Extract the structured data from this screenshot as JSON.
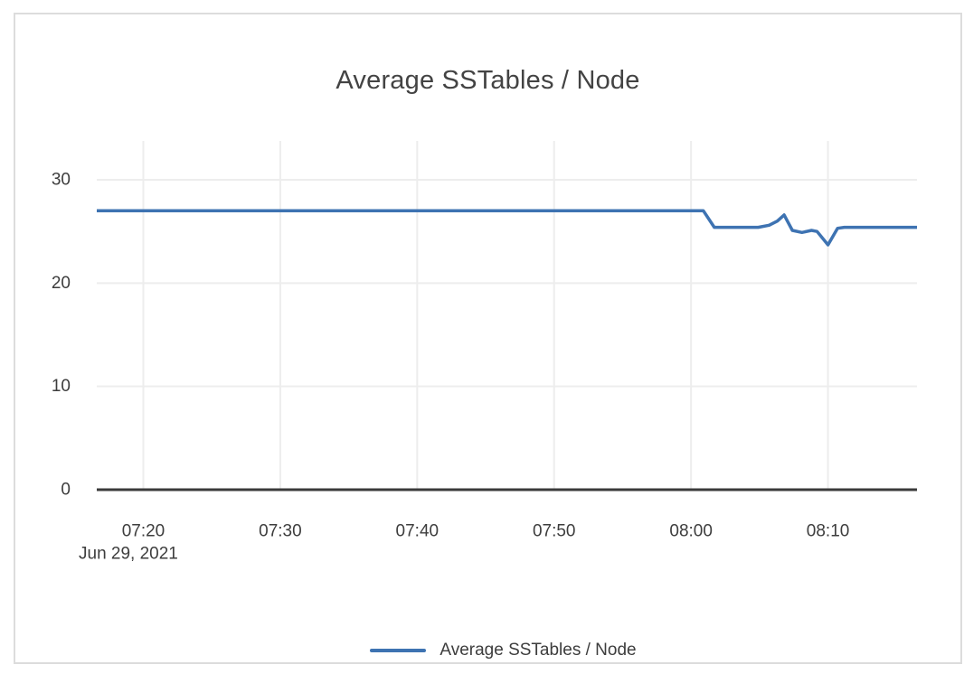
{
  "chart_data": {
    "type": "line",
    "title": "Average SSTables / Node",
    "grid": true,
    "grid_color": "#ededed",
    "axis_color": "#3a3a3a",
    "background_color": "#ffffff",
    "border_color": "#dcdcdc",
    "legend_position": "bottom",
    "x_axis": {
      "date_label": "Jun 29, 2021",
      "x_unit": "minutes_since_07:00",
      "range": [
        16.6,
        76.5
      ],
      "ticks": [
        {
          "t": 20,
          "label": "07:20"
        },
        {
          "t": 30,
          "label": "07:30"
        },
        {
          "t": 40,
          "label": "07:40"
        },
        {
          "t": 50,
          "label": "07:50"
        },
        {
          "t": 60,
          "label": "08:00"
        },
        {
          "t": 70,
          "label": "08:10"
        }
      ]
    },
    "y_axis": {
      "range": [
        0,
        33.76
      ],
      "ticks": [
        0,
        10,
        20,
        30
      ]
    },
    "series": [
      {
        "name": "Average SSTables / Node",
        "color": "#3e73b2",
        "points": [
          {
            "t": 16.6,
            "v": 27
          },
          {
            "t": 60.9,
            "v": 27
          },
          {
            "t": 61.7,
            "v": 25.4
          },
          {
            "t": 64.9,
            "v": 25.4
          },
          {
            "t": 65.7,
            "v": 25.6
          },
          {
            "t": 66.3,
            "v": 26.0
          },
          {
            "t": 66.8,
            "v": 26.6
          },
          {
            "t": 67.4,
            "v": 25.1
          },
          {
            "t": 68.1,
            "v": 24.9
          },
          {
            "t": 68.8,
            "v": 25.1
          },
          {
            "t": 69.2,
            "v": 25.0
          },
          {
            "t": 70.0,
            "v": 23.7
          },
          {
            "t": 70.7,
            "v": 25.3
          },
          {
            "t": 71.2,
            "v": 25.4
          },
          {
            "t": 76.5,
            "v": 25.4
          }
        ]
      }
    ]
  },
  "legend": {
    "label": "Average SSTables / Node",
    "swatch_color": "#3e73b2"
  }
}
